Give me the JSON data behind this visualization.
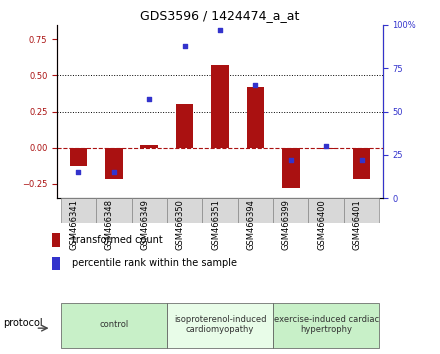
{
  "title": "GDS3596 / 1424474_a_at",
  "samples": [
    "GSM466341",
    "GSM466348",
    "GSM466349",
    "GSM466350",
    "GSM466351",
    "GSM466394",
    "GSM466399",
    "GSM466400",
    "GSM466401"
  ],
  "bar_values": [
    -0.13,
    -0.22,
    0.02,
    0.3,
    0.57,
    0.42,
    -0.28,
    -0.01,
    -0.22
  ],
  "dot_values": [
    15,
    15,
    57,
    88,
    97,
    65,
    22,
    30,
    22
  ],
  "groups": [
    {
      "label": "control",
      "start": 0,
      "end": 3,
      "color": "#c8f0c8"
    },
    {
      "label": "isoproterenol-induced\ncardiomyopathy",
      "start": 3,
      "end": 6,
      "color": "#e8fce8"
    },
    {
      "label": "exercise-induced cardiac\nhypertrophy",
      "start": 6,
      "end": 9,
      "color": "#c8f0c8"
    }
  ],
  "bar_color": "#aa1111",
  "dot_color": "#3333cc",
  "ylim_left": [
    -0.35,
    0.85
  ],
  "ylim_right": [
    0,
    100
  ],
  "yticks_left": [
    -0.25,
    0,
    0.25,
    0.5,
    0.75
  ],
  "yticks_right": [
    0,
    25,
    50,
    75,
    100
  ],
  "hlines": [
    0.25,
    0.5
  ],
  "background_color": "#ffffff",
  "title_fontsize": 9,
  "tick_fontsize": 6,
  "label_fontsize": 7,
  "group_fontsize": 6,
  "legend_fontsize": 7
}
